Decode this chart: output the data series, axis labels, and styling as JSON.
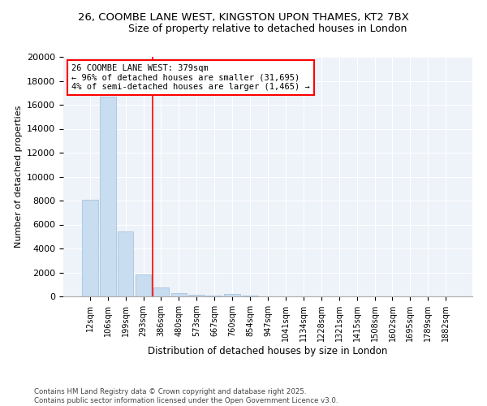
{
  "title_line1": "26, COOMBE LANE WEST, KINGSTON UPON THAMES, KT2 7BX",
  "title_line2": "Size of property relative to detached houses in London",
  "xlabel": "Distribution of detached houses by size in London",
  "ylabel": "Number of detached properties",
  "annotation_title": "26 COOMBE LANE WEST: 379sqm",
  "annotation_line2": "← 96% of detached houses are smaller (31,695)",
  "annotation_line3": "4% of semi-detached houses are larger (1,465) →",
  "footer_line1": "Contains HM Land Registry data © Crown copyright and database right 2025.",
  "footer_line2": "Contains public sector information licensed under the Open Government Licence v3.0.",
  "bar_color": "#c8ddf0",
  "bar_edge_color": "#9fbcd8",
  "vline_color": "red",
  "background_color": "#eef2f9",
  "grid_color": "white",
  "ylim": [
    0,
    20000
  ],
  "yticks": [
    0,
    2000,
    4000,
    6000,
    8000,
    10000,
    12000,
    14000,
    16000,
    18000,
    20000
  ],
  "categories": [
    "12sqm",
    "106sqm",
    "199sqm",
    "293sqm",
    "386sqm",
    "480sqm",
    "573sqm",
    "667sqm",
    "760sqm",
    "854sqm",
    "947sqm",
    "1041sqm",
    "1134sqm",
    "1228sqm",
    "1321sqm",
    "1415sqm",
    "1508sqm",
    "1602sqm",
    "1695sqm",
    "1789sqm",
    "1882sqm"
  ],
  "values": [
    8100,
    16700,
    5400,
    1850,
    750,
    300,
    150,
    80,
    200,
    100,
    0,
    0,
    0,
    0,
    0,
    0,
    0,
    0,
    0,
    0,
    0
  ],
  "vline_x": 3.5
}
